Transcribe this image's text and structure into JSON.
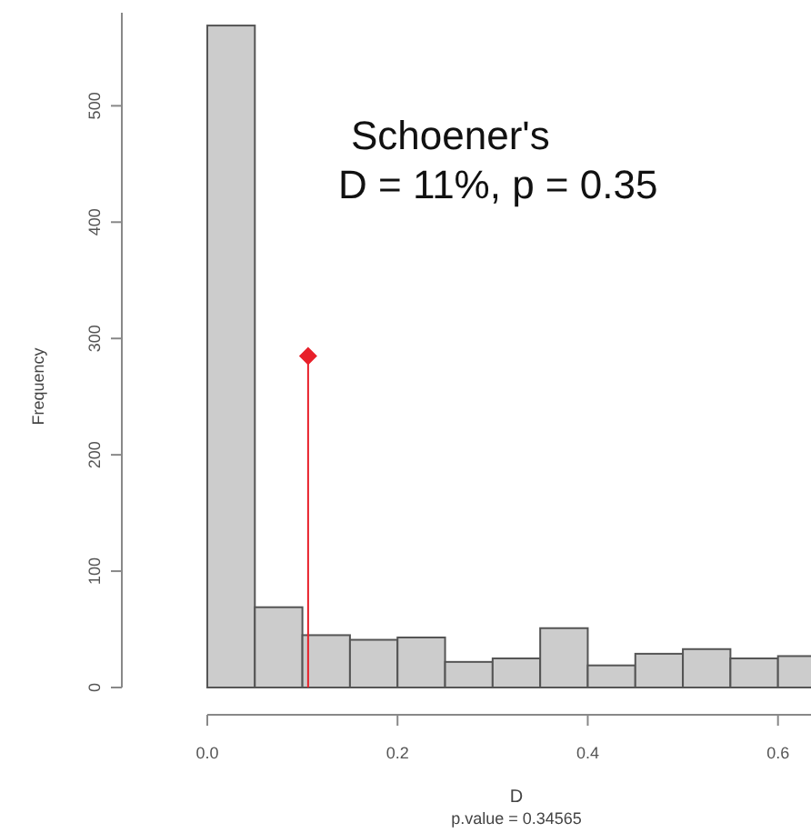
{
  "chart_data": {
    "type": "histogram",
    "xlabel": "D",
    "ylabel": "Frequency",
    "annotations": [
      "Schoener's\nD = 11%, p = 0.35",
      "p.value =  0.34565"
    ],
    "bins": [
      0,
      0.05,
      0.1,
      0.15,
      0.2,
      0.25,
      0.3,
      0.35,
      0.4,
      0.45,
      0.5,
      0.55,
      0.6,
      0.65
    ],
    "series": [
      {
        "color": "#cccccc",
        "values": [
          569,
          69,
          45,
          41,
          43,
          22,
          25,
          51,
          19,
          29,
          33,
          25,
          27
        ]
      },
      {
        "type": "lollipop",
        "color": "#e8202a",
        "x": [
          0.106
        ],
        "values": [
          285
        ],
        "marker": "diamond"
      }
    ],
    "xlim": [
      0,
      0.65
    ],
    "ylim": [
      0,
      580
    ],
    "xticks": [
      {
        "value": 0,
        "label": "0.0"
      },
      0.2,
      0.4,
      0.6
    ],
    "yticks": [
      0,
      100,
      200,
      300,
      400,
      500
    ],
    "grid": false
  }
}
